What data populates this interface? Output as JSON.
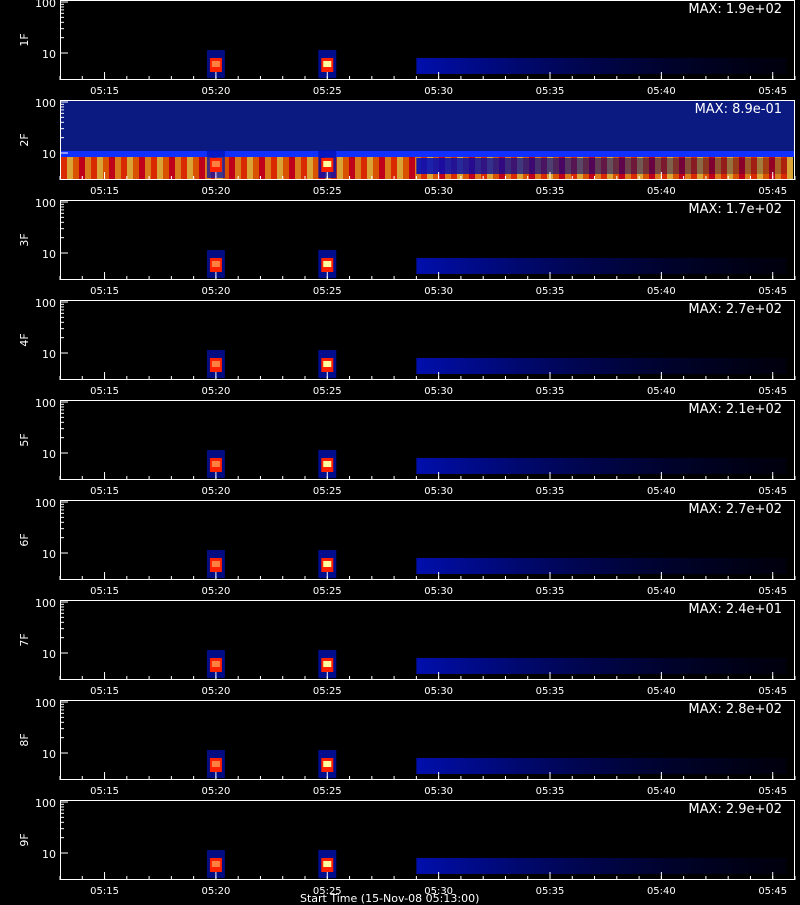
{
  "chart_data": [
    {
      "type": "heatmap",
      "panel_label": "1F",
      "max_label": "MAX: 1.9e+02",
      "y_ticks": [
        "100",
        "10"
      ],
      "x_ticks": [
        "05:15",
        "05:20",
        "05:25",
        "05:30",
        "05:35",
        "05:40",
        "05:45"
      ],
      "events": [
        {
          "time": "05:20",
          "intensity": 0.9
        },
        {
          "time": "05:25",
          "intensity": 1.0
        },
        {
          "time": "05:29",
          "intensity": 0.35
        }
      ]
    },
    {
      "type": "heatmap",
      "panel_label": "2F",
      "max_label": "MAX: 8.9e-01",
      "y_ticks": [
        "100",
        "10"
      ],
      "x_ticks": [
        "05:15",
        "05:20",
        "05:25",
        "05:30",
        "05:35",
        "05:40",
        "05:45"
      ],
      "events": [
        {
          "time": "05:20",
          "intensity": 0.9
        },
        {
          "time": "05:25",
          "intensity": 1.0
        },
        {
          "time": "05:29",
          "intensity": 0.3
        }
      ],
      "background": "high"
    },
    {
      "type": "heatmap",
      "panel_label": "3F",
      "max_label": "MAX: 1.7e+02",
      "y_ticks": [
        "100",
        "10"
      ],
      "x_ticks": [
        "05:15",
        "05:20",
        "05:25",
        "05:30",
        "05:35",
        "05:40",
        "05:45"
      ],
      "events": [
        {
          "time": "05:20",
          "intensity": 0.9
        },
        {
          "time": "05:25",
          "intensity": 1.0
        },
        {
          "time": "05:29",
          "intensity": 0.35
        }
      ]
    },
    {
      "type": "heatmap",
      "panel_label": "4F",
      "max_label": "MAX: 2.7e+02",
      "y_ticks": [
        "100",
        "10"
      ],
      "x_ticks": [
        "05:15",
        "05:20",
        "05:25",
        "05:30",
        "05:35",
        "05:40",
        "05:45"
      ],
      "events": [
        {
          "time": "05:20",
          "intensity": 0.9
        },
        {
          "time": "05:25",
          "intensity": 1.0
        },
        {
          "time": "05:29",
          "intensity": 0.35
        }
      ]
    },
    {
      "type": "heatmap",
      "panel_label": "5F",
      "max_label": "MAX: 2.1e+02",
      "y_ticks": [
        "100",
        "10"
      ],
      "x_ticks": [
        "05:15",
        "05:20",
        "05:25",
        "05:30",
        "05:35",
        "05:40",
        "05:45"
      ],
      "events": [
        {
          "time": "05:20",
          "intensity": 0.9
        },
        {
          "time": "05:25",
          "intensity": 1.0
        },
        {
          "time": "05:29",
          "intensity": 0.35
        }
      ]
    },
    {
      "type": "heatmap",
      "panel_label": "6F",
      "max_label": "MAX: 2.7e+02",
      "y_ticks": [
        "100",
        "10"
      ],
      "x_ticks": [
        "05:15",
        "05:20",
        "05:25",
        "05:30",
        "05:35",
        "05:40",
        "05:45"
      ],
      "events": [
        {
          "time": "05:20",
          "intensity": 0.9
        },
        {
          "time": "05:25",
          "intensity": 1.0
        },
        {
          "time": "05:29",
          "intensity": 0.35
        }
      ]
    },
    {
      "type": "heatmap",
      "panel_label": "7F",
      "max_label": "MAX: 2.4e+01",
      "y_ticks": [
        "100",
        "10"
      ],
      "x_ticks": [
        "05:15",
        "05:20",
        "05:25",
        "05:30",
        "05:35",
        "05:40",
        "05:45"
      ],
      "events": [
        {
          "time": "05:20",
          "intensity": 0.95
        },
        {
          "time": "05:25",
          "intensity": 1.0
        },
        {
          "time": "05:29",
          "intensity": 0.4
        }
      ]
    },
    {
      "type": "heatmap",
      "panel_label": "8F",
      "max_label": "MAX: 2.8e+02",
      "y_ticks": [
        "100",
        "10"
      ],
      "x_ticks": [
        "05:15",
        "05:20",
        "05:25",
        "05:30",
        "05:35",
        "05:40",
        "05:45"
      ],
      "events": [
        {
          "time": "05:20",
          "intensity": 0.9
        },
        {
          "time": "05:25",
          "intensity": 1.0
        },
        {
          "time": "05:29",
          "intensity": 0.35
        }
      ]
    },
    {
      "type": "heatmap",
      "panel_label": "9F",
      "max_label": "MAX: 2.9e+02",
      "y_ticks": [
        "100",
        "10"
      ],
      "x_ticks": [
        "05:15",
        "05:20",
        "05:25",
        "05:30",
        "05:35",
        "05:40",
        "05:45"
      ],
      "events": [
        {
          "time": "05:20",
          "intensity": 0.9
        },
        {
          "time": "05:25",
          "intensity": 1.0
        },
        {
          "time": "05:29",
          "intensity": 0.35
        }
      ]
    }
  ],
  "x_axis_title": "Start Time (15-Nov-08 05:13:00)",
  "x_range": [
    "05:13",
    "05:46"
  ],
  "y_scale": "log",
  "colors": {
    "axis": "#ffffff",
    "background": "#000000",
    "low": "#0000c8",
    "mid": "#ff0000",
    "high": "#ffff80"
  }
}
